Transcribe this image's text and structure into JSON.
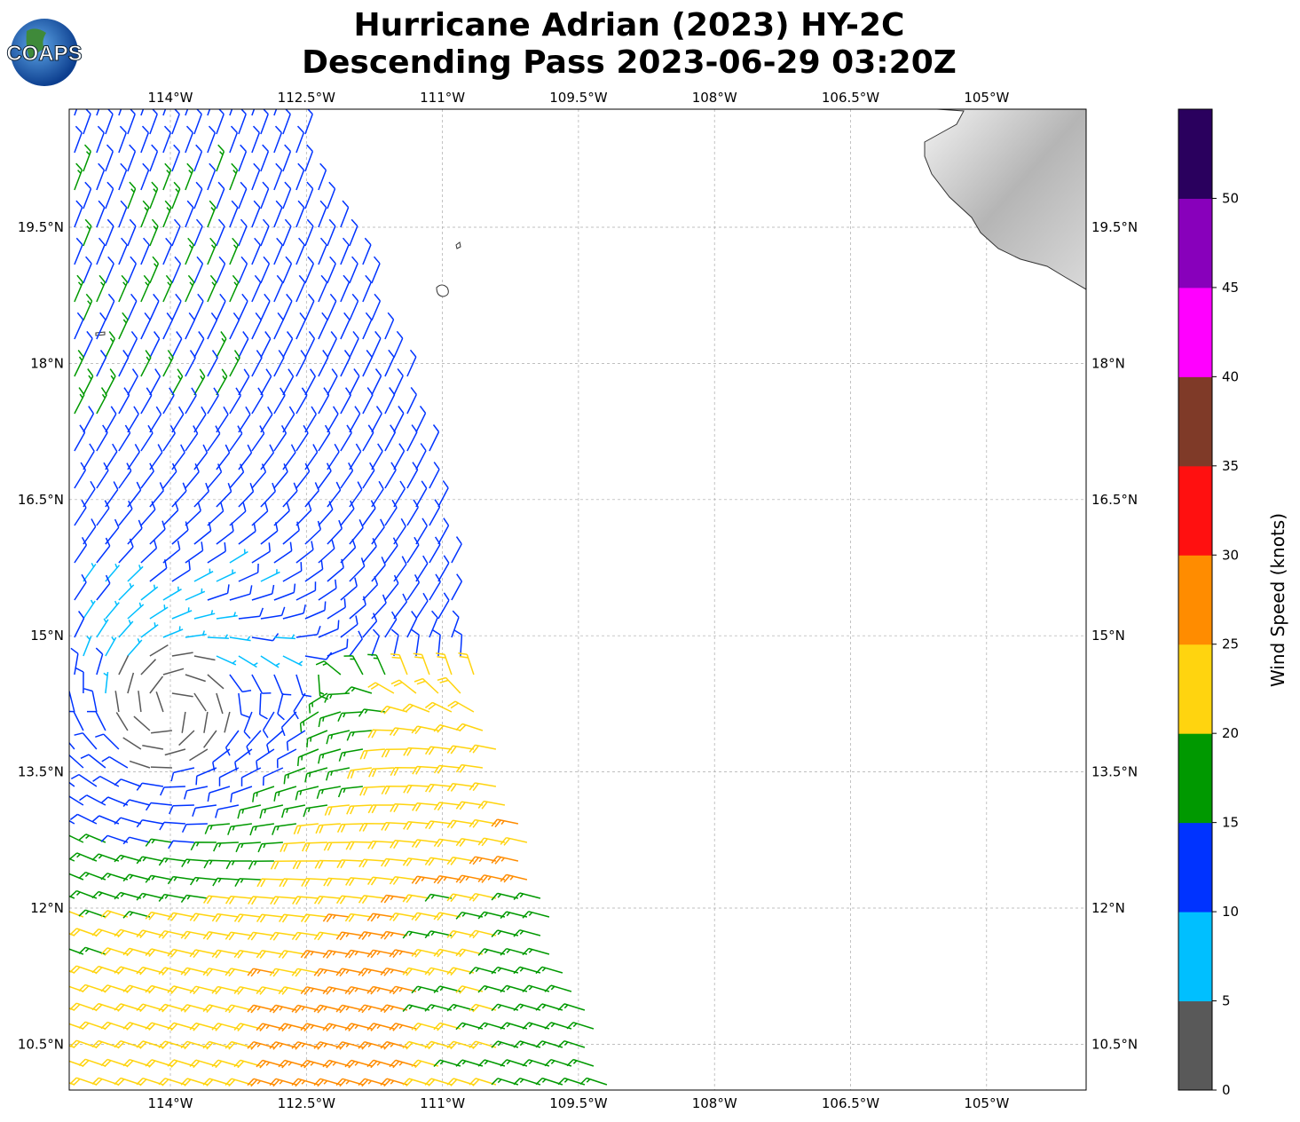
{
  "title": {
    "line1": "Hurricane Adrian (2023) HY-2C",
    "line2": "Descending Pass 2023-06-29 03:20Z"
  },
  "logo": {
    "text": "COAPS",
    "icon": "globe-icon"
  },
  "map": {
    "lon_ticks": [
      "114°W",
      "112.5°W",
      "111°W",
      "109.5°W",
      "108°W",
      "106.5°W",
      "105°W"
    ],
    "lat_ticks": [
      "19.5°N",
      "18°N",
      "16.5°N",
      "15°N",
      "13.5°N",
      "12°N",
      "10.5°N"
    ],
    "grid": true,
    "lon_range": [
      "115.1°W",
      "103.9°W"
    ],
    "lat_range": [
      "10.0°N",
      "20.8°N"
    ]
  },
  "colorbar": {
    "label": "Wind Speed (knots)",
    "ticks": [
      "0",
      "5",
      "10",
      "15",
      "20",
      "25",
      "30",
      "35",
      "40",
      "45",
      "50"
    ],
    "bins": [
      0,
      5,
      10,
      15,
      20,
      25,
      30,
      35,
      40,
      45,
      50,
      55
    ],
    "colors": [
      "#595959",
      "#00bfff",
      "#0033ff",
      "#009900",
      "#ffd40f",
      "#ff8c00",
      "#ff1010",
      "#7f3a28",
      "#ff00ff",
      "#8800bb",
      "#2a005e"
    ]
  }
}
